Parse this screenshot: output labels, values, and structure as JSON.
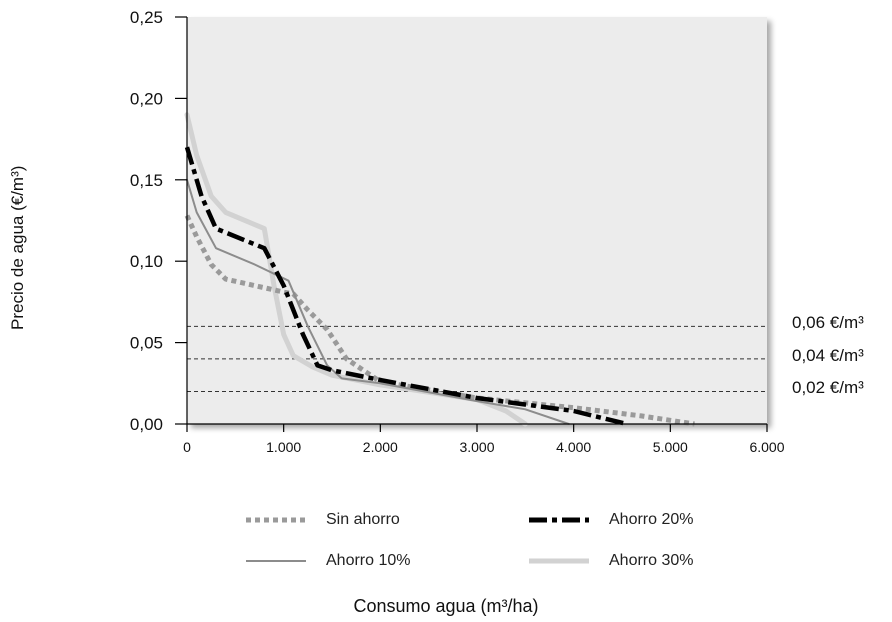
{
  "chart_data": {
    "type": "line",
    "xlabel": "Consumo agua (m³/ha)",
    "ylabel": "Precio de agua (€/m³)",
    "xlim": [
      0,
      6000
    ],
    "ylim": [
      0,
      0.25
    ],
    "x_ticks": [
      0,
      1000,
      2000,
      3000,
      4000,
      5000,
      6000
    ],
    "x_tick_labels": [
      "0",
      "1.000",
      "2.000",
      "3.000",
      "4.000",
      "5.000",
      "6.000"
    ],
    "y_ticks": [
      0,
      0.05,
      0.1,
      0.15,
      0.2,
      0.25
    ],
    "y_tick_labels": [
      "0,00",
      "0,05",
      "0,10",
      "0,15",
      "0,20",
      "0,25"
    ],
    "grid": false,
    "legend_position": "bottom",
    "plot_background": "#ececec",
    "reference_lines": [
      {
        "y": 0.06,
        "label": "0,06 €/m³"
      },
      {
        "y": 0.04,
        "label": "0,04 €/m³"
      },
      {
        "y": 0.02,
        "label": "0,02 €/m³"
      }
    ],
    "series": [
      {
        "name": "Sin ahorro",
        "color": "#9a9a9a",
        "style": "dotted",
        "x": [
          0,
          100,
          250,
          400,
          700,
          1000,
          1100,
          1250,
          1450,
          1650,
          2000,
          3000,
          4000,
          4700,
          5250
        ],
        "y": [
          0.128,
          0.115,
          0.098,
          0.089,
          0.085,
          0.081,
          0.08,
          0.07,
          0.058,
          0.04,
          0.026,
          0.016,
          0.01,
          0.005,
          0.0
        ]
      },
      {
        "name": "Ahorro 20%",
        "color": "#000000",
        "style": "dashdot",
        "x": [
          0,
          150,
          300,
          800,
          1000,
          1200,
          1350,
          1500,
          2000,
          3000,
          4000,
          4550
        ],
        "y": [
          0.17,
          0.14,
          0.12,
          0.108,
          0.085,
          0.055,
          0.036,
          0.033,
          0.027,
          0.016,
          0.008,
          0.0
        ]
      },
      {
        "name": "Ahorro 10%",
        "color": "#8c8c8c",
        "style": "solid-thin",
        "x": [
          0,
          100,
          300,
          700,
          1050,
          1250,
          1450,
          1600,
          2000,
          3000,
          3500,
          3950
        ],
        "y": [
          0.15,
          0.13,
          0.108,
          0.098,
          0.088,
          0.06,
          0.036,
          0.028,
          0.025,
          0.014,
          0.009,
          0.0
        ]
      },
      {
        "name": "Ahorro 30%",
        "color": "#d2d2d2",
        "style": "solid-thick",
        "x": [
          0,
          100,
          250,
          400,
          800,
          900,
          1000,
          1100,
          1300,
          1500,
          2000,
          3000,
          3300,
          3500
        ],
        "y": [
          0.19,
          0.165,
          0.14,
          0.13,
          0.12,
          0.085,
          0.055,
          0.042,
          0.035,
          0.03,
          0.024,
          0.015,
          0.008,
          0.0
        ]
      }
    ]
  }
}
